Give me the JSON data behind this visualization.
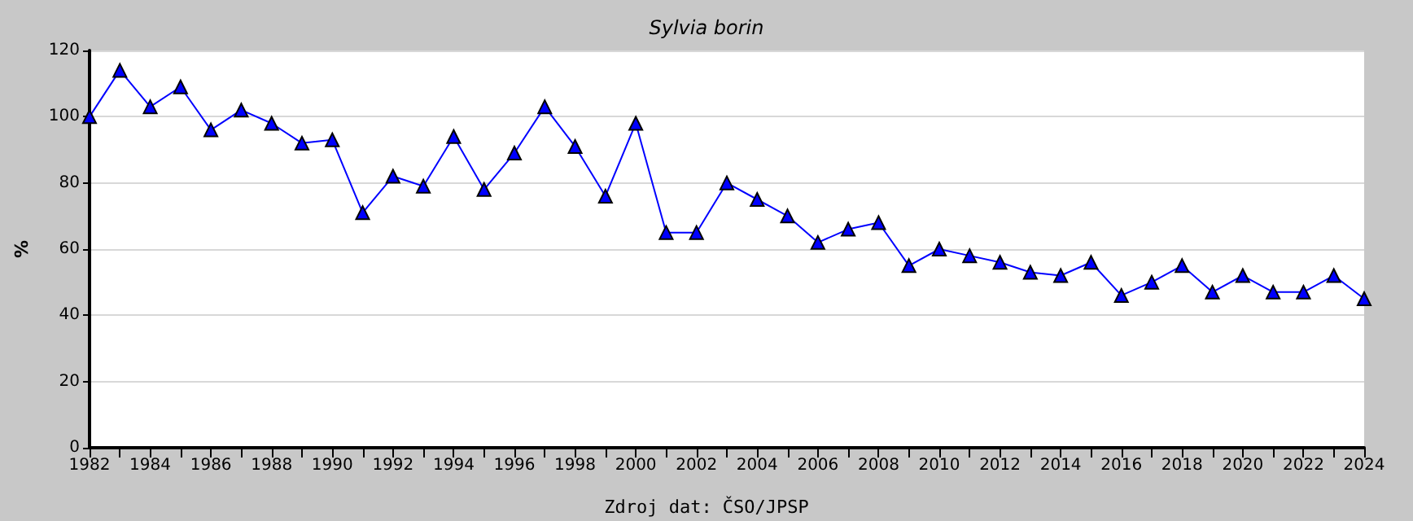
{
  "chart_data": {
    "type": "line",
    "title": "Sylvia borin",
    "ylabel": "%",
    "annotations": [
      "Zdroj dat: ČSO/JPSP"
    ],
    "x": [
      1982,
      1983,
      1984,
      1985,
      1986,
      1987,
      1988,
      1989,
      1990,
      1991,
      1992,
      1993,
      1994,
      1995,
      1996,
      1997,
      1998,
      1999,
      2000,
      2001,
      2002,
      2003,
      2004,
      2005,
      2006,
      2007,
      2008,
      2009,
      2010,
      2011,
      2012,
      2013,
      2014,
      2015,
      2016,
      2017,
      2018,
      2019,
      2020,
      2021,
      2022,
      2023,
      2024
    ],
    "series": [
      {
        "color": "#0000ff",
        "values": [
          100,
          114,
          103,
          109,
          96,
          102,
          98,
          92,
          93,
          71,
          82,
          79,
          94,
          78,
          89,
          103,
          91,
          76,
          98,
          65,
          65,
          80,
          75,
          70,
          62,
          66,
          68,
          55,
          60,
          58,
          56,
          53,
          52,
          56,
          46,
          50,
          55,
          47,
          52,
          47,
          47,
          52,
          45
        ]
      }
    ],
    "xlim": [
      1982,
      2024
    ],
    "xticks": [
      1982,
      {
        "value": 1983,
        "label": null
      },
      1984,
      {
        "value": 1985,
        "label": null
      },
      1986,
      {
        "value": 1987,
        "label": null
      },
      1988,
      {
        "value": 1989,
        "label": null
      },
      1990,
      {
        "value": 1991,
        "label": null
      },
      1992,
      {
        "value": 1993,
        "label": null
      },
      1994,
      {
        "value": 1995,
        "label": null
      },
      1996,
      {
        "value": 1997,
        "label": null
      },
      1998,
      {
        "value": 1999,
        "label": null
      },
      2000,
      {
        "value": 2001,
        "label": null
      },
      2002,
      {
        "value": 2003,
        "label": null
      },
      2004,
      {
        "value": 2005,
        "label": null
      },
      2006,
      {
        "value": 2007,
        "label": null
      },
      2008,
      {
        "value": 2009,
        "label": null
      },
      2010,
      {
        "value": 2011,
        "label": null
      },
      2012,
      {
        "value": 2013,
        "label": null
      },
      2014,
      {
        "value": 2015,
        "label": null
      },
      2016,
      {
        "value": 2017,
        "label": null
      },
      2018,
      {
        "value": 2019,
        "label": null
      },
      2020,
      {
        "value": 2021,
        "label": null
      },
      2022,
      {
        "value": 2023,
        "label": null
      },
      2024
    ],
    "ylim": [
      0,
      120
    ],
    "yticks": [
      0,
      20,
      40,
      60,
      80,
      100,
      120
    ],
    "grid": "y",
    "marker": "triangle",
    "line_style": "solid"
  }
}
